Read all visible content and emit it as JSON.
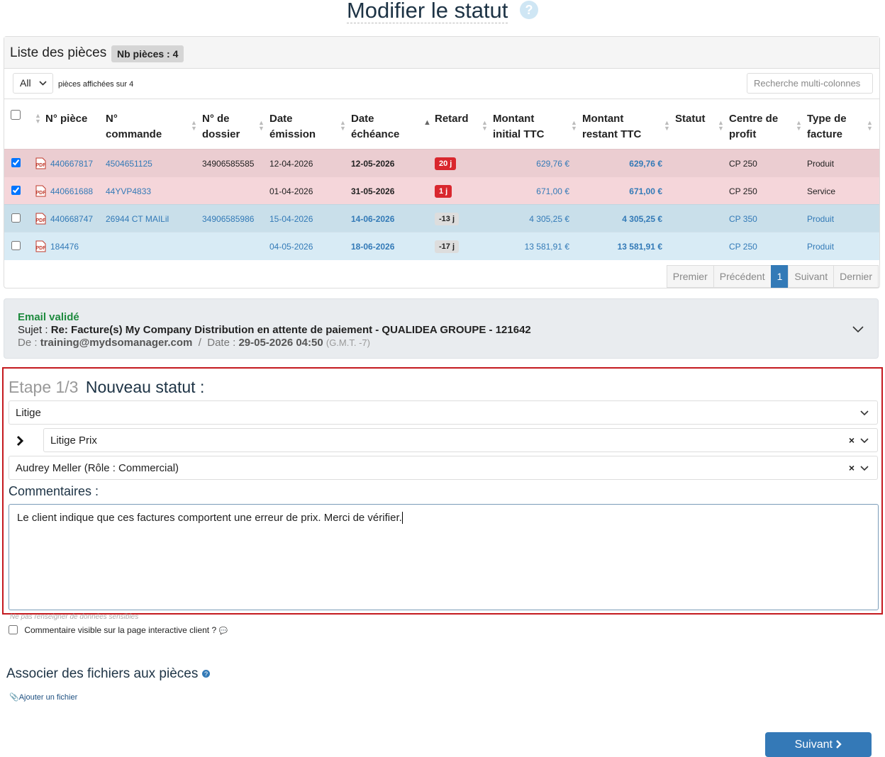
{
  "header": {
    "title": "Modifier le statut"
  },
  "list": {
    "title": "Liste des pièces",
    "count_badge": "Nb pièces : 4",
    "page_size": "All",
    "shown_text": "pièces affichées sur 4",
    "search_placeholder": "Recherche multi-colonnes",
    "columns": [
      "N° pièce",
      "N° commande",
      "N° de dossier",
      "Date émission",
      "Date échéance",
      "Retard",
      "Montant initial TTC",
      "Montant restant TTC",
      "Statut",
      "Centre de profit",
      "Type de facture"
    ],
    "rows": [
      {
        "checked": true,
        "color": "#ebcdd1",
        "badge_color": "#d9272e",
        "cells": [
          "440667817",
          "4504651125",
          "34906585585",
          "12-04-2026",
          "12-05-2026",
          "20 j",
          "629,76 €",
          "629,76 €",
          null,
          "CP 250",
          "Produit"
        ]
      },
      {
        "checked": true,
        "color": "#f5d6da",
        "badge_color": "#d9272e",
        "cells": [
          "440661688",
          "44YVP4833",
          null,
          "01-04-2026",
          "31-05-2026",
          "1 j",
          "671,00 €",
          "671,00 €",
          null,
          "CP 250",
          "Service"
        ]
      },
      {
        "checked": false,
        "color": "#c9dfea",
        "badge_color": "#dddddd",
        "cells": [
          "440668747",
          "26944 CT MAILil",
          "34906585986",
          "15-04-2026",
          "14-06-2026",
          "-13 j",
          "4 305,25 €",
          "4 305,25 €",
          null,
          "CP 350",
          "Produit"
        ]
      },
      {
        "checked": false,
        "color": "#d8ebf5",
        "badge_color": "#dddddd",
        "cells": [
          "184476",
          null,
          null,
          "04-05-2026",
          "18-06-2026",
          "-17 j",
          "13 581,91 €",
          "13 581,91 €",
          null,
          "CP 250",
          "Produit"
        ]
      }
    ],
    "pagination": [
      "Premier",
      "Précédent",
      "1",
      "Suivant",
      "Dernier"
    ]
  },
  "email": {
    "status": "Email validé",
    "subject_label": "Sujet :",
    "subject": "Re: Facture(s) My Company Distribution en attente de paiement - QUALIDEA GROUPE - 121642",
    "from_label": "De :",
    "from": "training@mydsomanager.com",
    "separator": "/",
    "date_label": "Date :",
    "date": "29-05-2026 04:50",
    "timezone": "(G.M.T. -7)"
  },
  "step": {
    "step_label": "Etape 1/3",
    "title": "Nouveau statut :",
    "status_select": "Litige",
    "substatus_select": "Litige Prix",
    "assignee_select": "Audrey Meller (Rôle : Commercial)",
    "comments_label": "Commentaires :",
    "comment": "Le client indique que ces factures comportent une erreur de prix. Merci de vérifier.",
    "hint": "Ne pas renseigner de données sensibles",
    "visible_label": "Commentaire visible sur la page interactive client ?"
  },
  "files": {
    "title": "Associer des fichiers aux pièces",
    "add_link": "Ajouter un fichier"
  },
  "next_button": "Suivant"
}
